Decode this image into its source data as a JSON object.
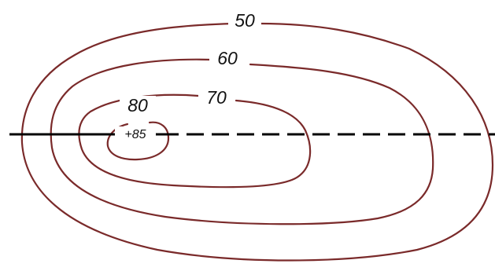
{
  "contour_labels": {
    "c50": "50",
    "c60": "60",
    "c70": "70",
    "c80": "80"
  },
  "peak_label": "+85",
  "colors": {
    "contour_line": "#7a2a2a",
    "profile_line": "#000000",
    "background": "#ffffff"
  }
}
